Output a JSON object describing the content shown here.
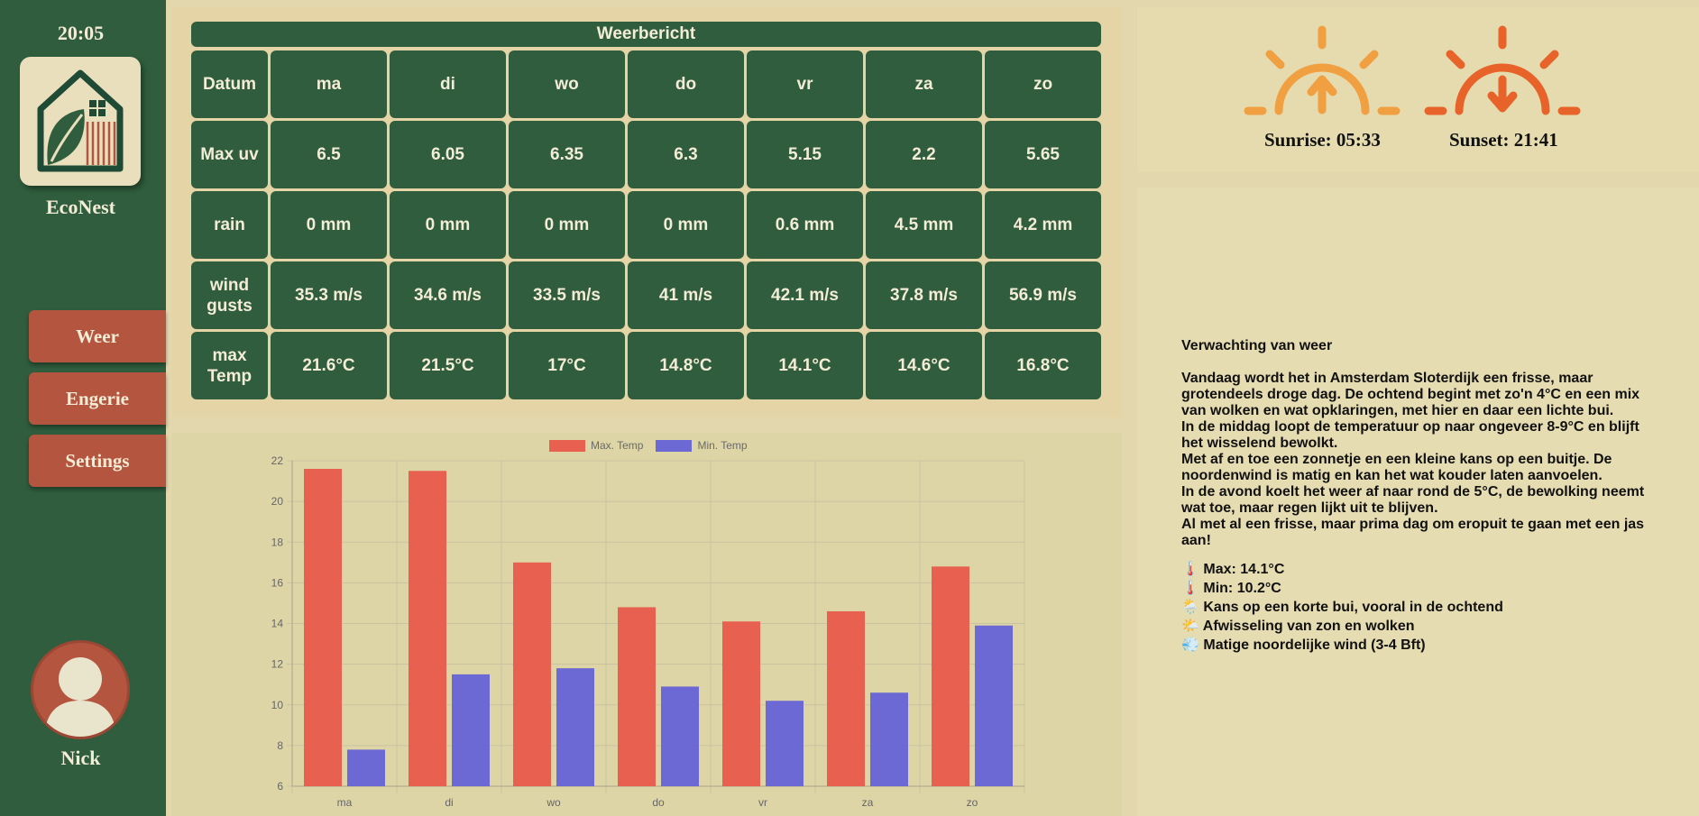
{
  "sidebar": {
    "time": "20:05",
    "brand": "EcoNest",
    "nav": [
      "Weer",
      "Engerie",
      "Settings"
    ],
    "user": "Nick"
  },
  "weather_table": {
    "title": "Weerbericht",
    "header_label": "Datum",
    "days": [
      "ma",
      "di",
      "wo",
      "do",
      "vr",
      "za",
      "zo"
    ],
    "rows": [
      {
        "label": "Max uv",
        "values": [
          "6.5",
          "6.05",
          "6.35",
          "6.3",
          "5.15",
          "2.2",
          "5.65"
        ]
      },
      {
        "label": "rain",
        "values": [
          "0 mm",
          "0 mm",
          "0 mm",
          "0 mm",
          "0.6 mm",
          "4.5 mm",
          "4.2 mm"
        ]
      },
      {
        "label": "wind gusts",
        "values": [
          "35.3 m/s",
          "34.6 m/s",
          "33.5 m/s",
          "41 m/s",
          "42.1 m/s",
          "37.8 m/s",
          "56.9 m/s"
        ]
      },
      {
        "label": "max Temp",
        "values": [
          "21.6°C",
          "21.5°C",
          "17°C",
          "14.8°C",
          "14.1°C",
          "14.6°C",
          "16.8°C"
        ]
      }
    ]
  },
  "sun": {
    "sunrise": "Sunrise: 05:33",
    "sunset": "Sunset: 21:41",
    "sunrise_color": "#f0a040",
    "sunset_color": "#e8632a"
  },
  "forecast": {
    "title": "Verwachting van weer",
    "paragraphs": [
      "Vandaag wordt het in Amsterdam Sloterdijk een frisse, maar grotendeels droge dag. De ochtend begint met zo'n 4°C en een mix van wolken en wat opklaringen, met hier en daar een lichte bui.",
      "In de middag loopt de temperatuur op naar ongeveer 8-9°C en blijft het wisselend bewolkt.",
      "Met af en toe een zonnetje en een kleine kans op een buitje. De noordenwind is matig en kan het wat kouder laten aanvoelen.",
      "In de avond koelt het weer af naar rond de 5°C, de bewolking neemt wat toe, maar regen lijkt uit te blijven.",
      "Al met al een frisse, maar prima dag om eropuit te gaan met een jas aan!"
    ],
    "bullets": [
      {
        "icon": "🌡️",
        "icon_name": "thermometer-icon",
        "text": "Max: 14.1°C"
      },
      {
        "icon": "🌡️",
        "icon_name": "thermometer-icon",
        "text": "Min: 10.2°C"
      },
      {
        "icon": "🌦️",
        "icon_name": "sun-rain-icon",
        "text": "Kans op een korte bui, vooral in de ochtend"
      },
      {
        "icon": "🌤️",
        "icon_name": "sun-cloud-icon",
        "text": "Afwisseling van zon en wolken"
      },
      {
        "icon": "💨",
        "icon_name": "wind-icon",
        "text": "Matige noordelijke wind (3-4 Bft)"
      }
    ]
  },
  "chart_data": {
    "type": "bar",
    "categories": [
      "ma",
      "di",
      "wo",
      "do",
      "vr",
      "za",
      "zo"
    ],
    "series": [
      {
        "name": "Max. Temp",
        "color": "#e8604f",
        "values": [
          21.6,
          21.5,
          17.0,
          14.8,
          14.1,
          14.6,
          16.8
        ]
      },
      {
        "name": "Min. Temp",
        "color": "#6c68d4",
        "values": [
          7.8,
          11.5,
          11.8,
          10.9,
          10.2,
          10.6,
          13.9
        ]
      }
    ],
    "ylim": [
      6,
      22
    ],
    "yticks": [
      6,
      8,
      10,
      12,
      14,
      16,
      18,
      20,
      22
    ],
    "grid": true,
    "legend": "top-center"
  }
}
